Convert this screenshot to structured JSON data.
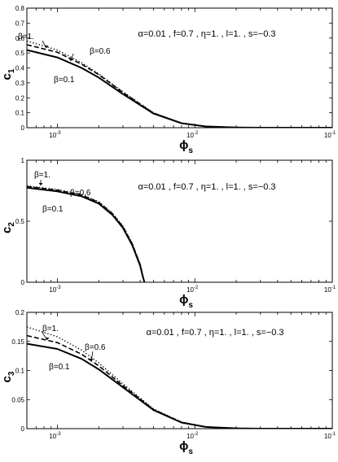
{
  "chart_data": [
    {
      "type": "line",
      "ylabel": "c",
      "ylabel_sub": "1",
      "xlabel": "ϕ",
      "xlabel_sub": "s",
      "xscale": "log",
      "xlim": [
        0.0006,
        0.1
      ],
      "ylim": [
        0,
        0.8
      ],
      "yticks": [
        "0",
        "0.1",
        "0.2",
        "0.3",
        "0.4",
        "0.5",
        "0.6",
        "0.7",
        "0.8"
      ],
      "xticks": [
        {
          "base": "10",
          "exp": "-3"
        },
        {
          "base": "10",
          "exp": "-2"
        },
        {
          "base": "10",
          "exp": "-1"
        }
      ],
      "annotation": "α=0.01 , f=0.7 , η=1. , l=1. , s=−0.3",
      "series": [
        {
          "name": "β=1.",
          "style": "dotted",
          "points": [
            [
              0.0006,
              0.58
            ],
            [
              0.001,
              0.52
            ],
            [
              0.0015,
              0.435
            ],
            [
              0.002,
              0.36
            ],
            [
              0.003,
              0.24
            ],
            [
              0.005,
              0.1
            ],
            [
              0.008,
              0.03
            ],
            [
              0.012,
              0.008
            ],
            [
              0.02,
              0.0015
            ],
            [
              0.03,
              0.0
            ],
            [
              0.1,
              0.0
            ]
          ]
        },
        {
          "name": "β=0.6",
          "style": "dashed",
          "points": [
            [
              0.0006,
              0.555
            ],
            [
              0.001,
              0.505
            ],
            [
              0.0015,
              0.425
            ],
            [
              0.002,
              0.355
            ],
            [
              0.003,
              0.235
            ],
            [
              0.005,
              0.098
            ],
            [
              0.008,
              0.03
            ],
            [
              0.012,
              0.008
            ],
            [
              0.02,
              0.0015
            ],
            [
              0.03,
              0.0
            ],
            [
              0.1,
              0.0
            ]
          ]
        },
        {
          "name": "β=0.1",
          "style": "solid",
          "points": [
            [
              0.0006,
              0.52
            ],
            [
              0.001,
              0.47
            ],
            [
              0.0015,
              0.4
            ],
            [
              0.002,
              0.335
            ],
            [
              0.003,
              0.225
            ],
            [
              0.005,
              0.095
            ],
            [
              0.008,
              0.03
            ],
            [
              0.012,
              0.008
            ],
            [
              0.02,
              0.0015
            ],
            [
              0.03,
              0.0
            ],
            [
              0.1,
              0.0
            ]
          ]
        }
      ],
      "curve_labels": [
        "β=1.",
        "β=0.6",
        "β=0.1"
      ]
    },
    {
      "type": "line",
      "ylabel": "c",
      "ylabel_sub": "2",
      "xlabel": "ϕ",
      "xlabel_sub": "s",
      "xscale": "log",
      "xlim": [
        0.0006,
        0.1
      ],
      "ylim": [
        0,
        1
      ],
      "yticks": [
        "0",
        "0.5",
        "1"
      ],
      "xticks": [
        {
          "base": "10",
          "exp": "-3"
        },
        {
          "base": "10",
          "exp": "-2"
        },
        {
          "base": "10",
          "exp": "-1"
        }
      ],
      "annotation": "α=0.01 , f=0.7 , η=1. , l=1. , s=−0.3",
      "series": [
        {
          "name": "β=1.",
          "style": "dotted",
          "points": [
            [
              0.0006,
              0.79
            ],
            [
              0.001,
              0.76
            ],
            [
              0.0015,
              0.72
            ],
            [
              0.002,
              0.66
            ],
            [
              0.0025,
              0.57
            ],
            [
              0.003,
              0.46
            ],
            [
              0.0035,
              0.32
            ],
            [
              0.004,
              0.15
            ],
            [
              0.0042,
              0.05
            ],
            [
              0.0043,
              0.0
            ]
          ]
        },
        {
          "name": "β=0.6",
          "style": "dashed",
          "points": [
            [
              0.0006,
              0.785
            ],
            [
              0.001,
              0.755
            ],
            [
              0.0015,
              0.715
            ],
            [
              0.002,
              0.655
            ],
            [
              0.0025,
              0.565
            ],
            [
              0.003,
              0.455
            ],
            [
              0.0035,
              0.315
            ],
            [
              0.004,
              0.145
            ],
            [
              0.0042,
              0.045
            ],
            [
              0.0043,
              0.0
            ]
          ]
        },
        {
          "name": "β=0.1",
          "style": "solid",
          "points": [
            [
              0.0006,
              0.775
            ],
            [
              0.001,
              0.745
            ],
            [
              0.0015,
              0.705
            ],
            [
              0.002,
              0.645
            ],
            [
              0.0025,
              0.555
            ],
            [
              0.003,
              0.445
            ],
            [
              0.0035,
              0.305
            ],
            [
              0.004,
              0.135
            ],
            [
              0.0042,
              0.04
            ],
            [
              0.0043,
              0.0
            ]
          ]
        }
      ],
      "curve_labels": [
        "β=1.",
        "β=0.6",
        "β=0.1"
      ]
    },
    {
      "type": "line",
      "ylabel": "c",
      "ylabel_sub": "3",
      "xlabel": "ϕ",
      "xlabel_sub": "s",
      "xscale": "log",
      "xlim": [
        0.0006,
        0.1
      ],
      "ylim": [
        0,
        0.2
      ],
      "yticks": [
        "0",
        "0.05",
        "0.1",
        "0.15",
        "0.2"
      ],
      "xticks": [
        {
          "base": "10",
          "exp": "-3"
        },
        {
          "base": "10",
          "exp": "-2"
        },
        {
          "base": "10",
          "exp": "-1"
        }
      ],
      "annotation": "α=0.01 , f=0.7 , η=1. , l=1. , s=−0.3",
      "series": [
        {
          "name": "β=1.",
          "style": "dotted",
          "points": [
            [
              0.0006,
              0.175
            ],
            [
              0.001,
              0.158
            ],
            [
              0.0015,
              0.135
            ],
            [
              0.002,
              0.113
            ],
            [
              0.003,
              0.077
            ],
            [
              0.005,
              0.034
            ],
            [
              0.008,
              0.011
            ],
            [
              0.012,
              0.003
            ],
            [
              0.02,
              0.0005
            ],
            [
              0.03,
              0.0
            ],
            [
              0.1,
              0.0
            ]
          ]
        },
        {
          "name": "β=0.6",
          "style": "dashed",
          "points": [
            [
              0.0006,
              0.16
            ],
            [
              0.001,
              0.148
            ],
            [
              0.0015,
              0.128
            ],
            [
              0.002,
              0.108
            ],
            [
              0.003,
              0.074
            ],
            [
              0.005,
              0.033
            ],
            [
              0.008,
              0.011
            ],
            [
              0.012,
              0.003
            ],
            [
              0.02,
              0.0005
            ],
            [
              0.03,
              0.0
            ],
            [
              0.1,
              0.0
            ]
          ]
        },
        {
          "name": "β=0.1",
          "style": "solid",
          "points": [
            [
              0.0006,
              0.146
            ],
            [
              0.001,
              0.137
            ],
            [
              0.0015,
              0.12
            ],
            [
              0.002,
              0.102
            ],
            [
              0.003,
              0.071
            ],
            [
              0.005,
              0.032
            ],
            [
              0.008,
              0.0105
            ],
            [
              0.012,
              0.003
            ],
            [
              0.02,
              0.0005
            ],
            [
              0.03,
              0.0
            ],
            [
              0.1,
              0.0
            ]
          ]
        }
      ],
      "curve_labels": [
        "β=1.",
        "β=0.6",
        "β=0.1"
      ]
    }
  ]
}
